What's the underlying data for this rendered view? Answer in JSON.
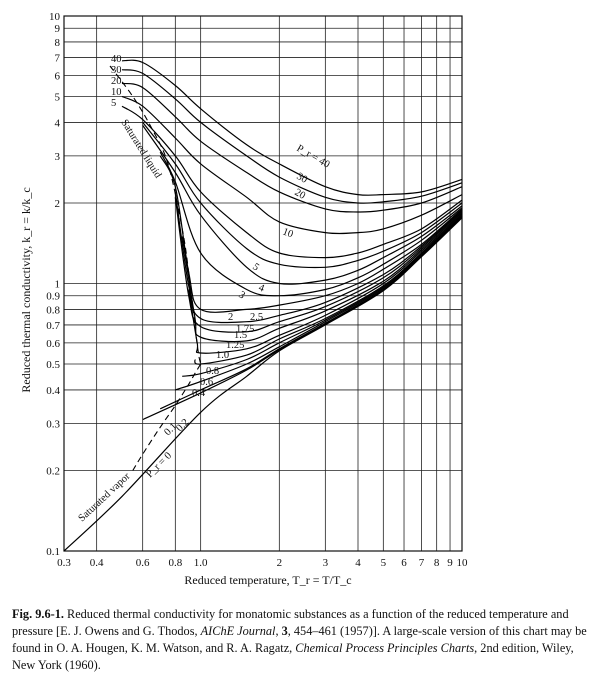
{
  "chart_data": {
    "type": "line",
    "title": "",
    "xlabel": "Reduced temperature, T_r = T/T_c",
    "ylabel": "Reduced thermal conductivity, k_r = k/k_c",
    "x_scale": "log",
    "y_scale": "log",
    "xlim": [
      0.3,
      10
    ],
    "ylim": [
      0.1,
      10
    ],
    "grid": true,
    "x_ticks": [
      "0.3",
      "0.4",
      "0.6",
      "0.8",
      "1.0",
      "2",
      "3",
      "4",
      "5",
      "6",
      "7",
      "8",
      "9",
      "10"
    ],
    "y_ticks": [
      "0.1",
      "0.2",
      "0.3",
      "0.4",
      "0.5",
      "0.6",
      "0.7",
      "0.8",
      "0.9",
      "1",
      "2",
      "3",
      "4",
      "5",
      "6",
      "7",
      "8",
      "9",
      "10"
    ],
    "annotations": [
      "Saturated liquid",
      "Saturated vapor"
    ],
    "series": [
      {
        "name": "40",
        "label": "P_r = 40",
        "x": [
          0.5,
          0.6,
          0.8,
          1.0,
          1.5,
          2,
          3,
          4,
          5,
          7,
          10
        ],
        "y": [
          6.8,
          6.7,
          5.5,
          4.5,
          3.3,
          2.8,
          2.3,
          2.15,
          2.15,
          2.2,
          2.45
        ]
      },
      {
        "name": "30",
        "label": "30",
        "x": [
          0.5,
          0.6,
          0.8,
          1.0,
          1.5,
          2,
          3,
          4,
          5,
          7,
          10
        ],
        "y": [
          6.3,
          6.1,
          4.9,
          4.0,
          3.0,
          2.5,
          2.1,
          2.0,
          2.02,
          2.12,
          2.38
        ]
      },
      {
        "name": "20",
        "label": "20",
        "x": [
          0.5,
          0.6,
          0.8,
          1.0,
          1.5,
          2,
          3,
          4,
          5,
          7,
          10
        ],
        "y": [
          5.6,
          5.4,
          4.2,
          3.4,
          2.6,
          2.2,
          1.9,
          1.85,
          1.88,
          2.0,
          2.3
        ]
      },
      {
        "name": "10",
        "label": "10",
        "x": [
          0.5,
          0.6,
          0.8,
          1.0,
          1.5,
          2,
          3,
          4,
          5,
          7,
          10
        ],
        "y": [
          5.0,
          4.6,
          3.5,
          2.8,
          2.1,
          1.7,
          1.55,
          1.55,
          1.6,
          1.8,
          2.15
        ]
      },
      {
        "name": "5",
        "label": "5",
        "x": [
          0.5,
          0.6,
          0.8,
          1.0,
          1.5,
          2,
          3,
          4,
          5,
          7,
          10
        ],
        "y": [
          4.6,
          4.1,
          3.0,
          2.2,
          1.55,
          1.3,
          1.25,
          1.3,
          1.4,
          1.6,
          2.05
        ]
      },
      {
        "name": "4",
        "label": "4",
        "x": [
          0.6,
          0.8,
          1.0,
          1.5,
          2,
          3,
          4,
          5,
          7,
          10
        ],
        "y": [
          4.0,
          2.8,
          2.0,
          1.35,
          1.18,
          1.15,
          1.22,
          1.32,
          1.55,
          2.0
        ]
      },
      {
        "name": "3",
        "label": "3",
        "x": [
          0.6,
          0.8,
          1.0,
          1.5,
          2,
          3,
          4,
          5,
          7,
          10
        ],
        "y": [
          3.9,
          2.6,
          1.8,
          1.15,
          1.0,
          1.03,
          1.12,
          1.25,
          1.5,
          1.95
        ]
      },
      {
        "name": "2.5",
        "label": "2.5",
        "x": [
          0.7,
          0.8,
          1.0,
          1.5,
          2,
          3,
          4,
          5,
          7,
          10
        ],
        "y": [
          3.1,
          2.4,
          1.3,
          0.95,
          0.9,
          0.95,
          1.05,
          1.18,
          1.45,
          1.92
        ]
      },
      {
        "name": "2",
        "label": "2",
        "x": [
          0.7,
          0.8,
          0.9,
          1.0,
          1.5,
          2,
          3,
          4,
          5,
          7,
          10
        ],
        "y": [
          3.0,
          2.3,
          1.1,
          0.8,
          0.8,
          0.83,
          0.9,
          1.0,
          1.13,
          1.4,
          1.9
        ]
      },
      {
        "name": "1.75",
        "label": "1.75",
        "x": [
          0.8,
          0.9,
          1.0,
          1.5,
          2,
          3,
          5,
          7,
          10
        ],
        "y": [
          2.2,
          0.98,
          0.74,
          0.72,
          0.76,
          0.85,
          1.08,
          1.38,
          1.88
        ]
      },
      {
        "name": "1.5",
        "label": "1.5",
        "x": [
          0.8,
          0.9,
          1.0,
          1.5,
          2,
          3,
          5,
          7,
          10
        ],
        "y": [
          2.1,
          0.9,
          0.69,
          0.66,
          0.72,
          0.82,
          1.05,
          1.36,
          1.86
        ]
      },
      {
        "name": "1.25",
        "label": "1.25",
        "x": [
          0.85,
          0.95,
          1.0,
          1.5,
          2,
          3,
          5,
          7,
          10
        ],
        "y": [
          1.5,
          0.75,
          0.63,
          0.61,
          0.68,
          0.79,
          1.02,
          1.34,
          1.84
        ]
      },
      {
        "name": "1.0",
        "label": "1.0",
        "x": [
          0.9,
          0.97,
          1.0,
          1.5,
          2,
          3,
          5,
          7,
          10
        ],
        "y": [
          0.95,
          0.6,
          0.55,
          0.57,
          0.64,
          0.76,
          1.0,
          1.32,
          1.82
        ]
      },
      {
        "name": "0.8",
        "label": "0.8",
        "x": [
          0.95,
          1.0,
          1.5,
          2,
          3,
          5,
          7,
          10
        ],
        "y": [
          0.52,
          0.5,
          0.54,
          0.62,
          0.74,
          0.98,
          1.3,
          1.8
        ]
      },
      {
        "name": "0.6",
        "label": "0.6",
        "x": [
          0.85,
          1.0,
          1.5,
          2,
          3,
          5,
          7,
          10
        ],
        "y": [
          0.45,
          0.46,
          0.52,
          0.6,
          0.73,
          0.97,
          1.29,
          1.79
        ]
      },
      {
        "name": "0.4",
        "label": "0.4",
        "x": [
          0.8,
          1.0,
          1.5,
          2,
          3,
          5,
          7,
          10
        ],
        "y": [
          0.4,
          0.43,
          0.5,
          0.58,
          0.72,
          0.96,
          1.28,
          1.78
        ]
      },
      {
        "name": "0.2",
        "label": "0.2",
        "x": [
          0.7,
          1.0,
          1.5,
          2,
          3,
          5,
          7,
          10
        ],
        "y": [
          0.34,
          0.4,
          0.48,
          0.57,
          0.71,
          0.95,
          1.27,
          1.77
        ]
      },
      {
        "name": "0.1",
        "label": "0.1",
        "x": [
          0.6,
          1.0,
          1.5,
          2,
          3,
          5,
          7,
          10
        ],
        "y": [
          0.31,
          0.39,
          0.475,
          0.565,
          0.705,
          0.945,
          1.265,
          1.765
        ]
      },
      {
        "name": "0",
        "label": "P_r = 0",
        "x": [
          0.3,
          0.5,
          1.0,
          1.5,
          2,
          3,
          5,
          7,
          10
        ],
        "y": [
          0.1,
          0.16,
          0.33,
          0.45,
          0.56,
          0.7,
          0.94,
          1.26,
          1.76
        ]
      }
    ],
    "saturation_curve": {
      "liquid": {
        "x": [
          0.45,
          0.55,
          0.65,
          0.75,
          0.85,
          0.9,
          0.95,
          0.98,
          1.0
        ],
        "y": [
          6.5,
          5.0,
          3.8,
          2.8,
          1.6,
          1.1,
          0.7,
          0.55,
          0.5
        ]
      },
      "vapor": {
        "x": [
          0.55,
          0.6,
          0.7,
          0.8,
          0.9,
          0.95,
          1.0
        ],
        "y": [
          0.2,
          0.23,
          0.29,
          0.35,
          0.42,
          0.46,
          0.5
        ]
      }
    }
  },
  "caption": {
    "number": "Fig. 9.6-1.",
    "text_1": " Reduced thermal conductivity for monatomic substances as a function of the reduced temperature and pressure [E. J. Owens and G. Thodos, ",
    "journal": "AIChE Journal",
    "text_2": ", ",
    "volume": "3",
    "text_3": ", 454–461 (1957)]. A large-scale version of this chart may be found in O. A. Hougen, K. M. Watson, and R. A. Ragatz, ",
    "book": "Chemical Process Principles Charts",
    "text_4": ", 2nd edition, Wiley, New York (1960)."
  }
}
